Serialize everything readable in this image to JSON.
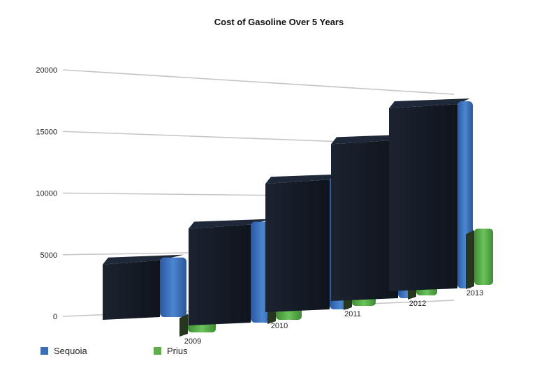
{
  "chart_data": {
    "type": "bar",
    "title": "Cost of Gasoline Over 5 Years",
    "xlabel": "",
    "ylabel": "",
    "categories": [
      "2009",
      "2010",
      "2011",
      "2012",
      "2013"
    ],
    "series": [
      {
        "name": "Sequoia",
        "values": [
          3500,
          7500,
          10800,
          14200,
          17500
        ],
        "color": "#3b6fb3"
      },
      {
        "name": "Prius",
        "values": [
          1200,
          2500,
          3700,
          4700,
          5300
        ],
        "color": "#5fae4c"
      }
    ],
    "ylim": [
      0,
      20000
    ],
    "yticks": [
      "0",
      "5000",
      "10000",
      "15000",
      "20000"
    ],
    "grid": true,
    "legend": "bottom-left",
    "style": "3d-perspective"
  }
}
